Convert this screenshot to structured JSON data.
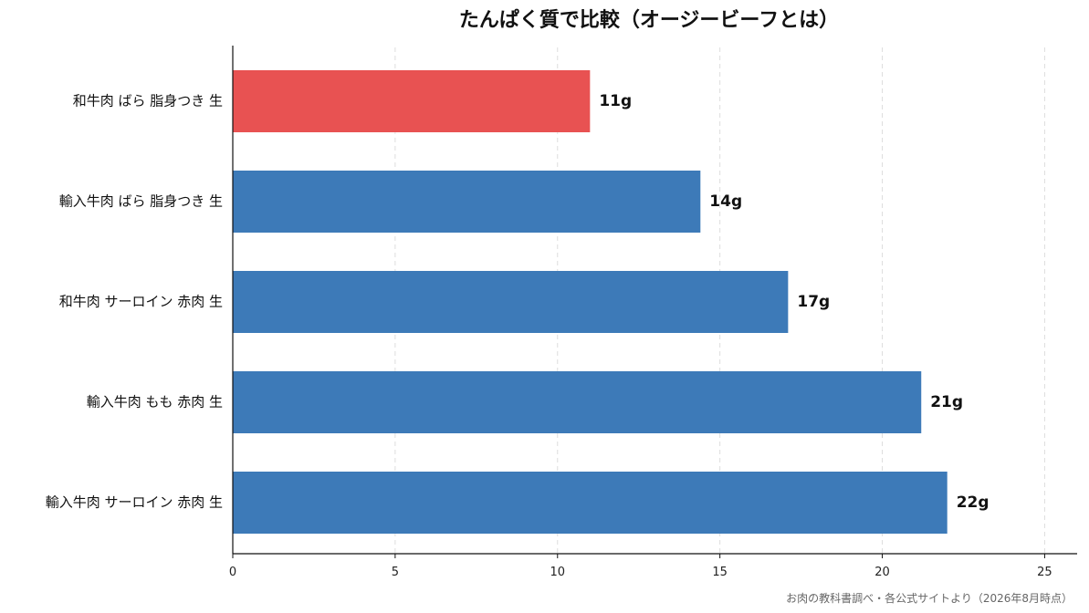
{
  "chart_data": {
    "type": "bar",
    "orientation": "horizontal",
    "title": "たんぱく質で比較（オージービーフとは）",
    "xlabel": "",
    "ylabel": "",
    "categories": [
      "和牛肉 ばら 脂身つき 生",
      "輸入牛肉 ばら 脂身つき 生",
      "和牛肉 サーロイン 赤肉 生",
      "輸入牛肉 もも 赤肉 生",
      "輸入牛肉 サーロイン 赤肉 生"
    ],
    "values": [
      11,
      14.4,
      17.1,
      21.2,
      22
    ],
    "value_labels": [
      "11g",
      "14g",
      "17g",
      "21g",
      "22g"
    ],
    "highlight_index": 0,
    "colors": {
      "highlight": "#e85252",
      "default": "#3d7ab8"
    },
    "xlim": [
      0,
      26
    ],
    "xticks": [
      0,
      5,
      10,
      15,
      20,
      25
    ],
    "grid": "vertical-dashed",
    "legend": "none",
    "source": "お肉の教科書調べ・各公式サイトより（2026年8月時点）"
  }
}
